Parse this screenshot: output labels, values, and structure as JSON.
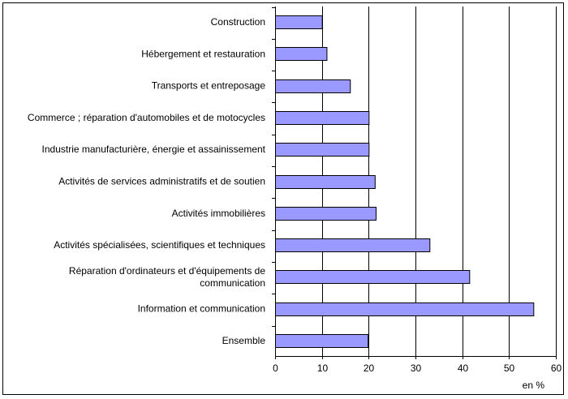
{
  "chart_data": {
    "type": "bar",
    "orientation": "horizontal",
    "categories": [
      [
        "Construction"
      ],
      [
        "Hébergement et restauration"
      ],
      [
        "Transports et entreposage"
      ],
      [
        "Commerce ; réparation d'automobiles et de motocycles"
      ],
      [
        "Industrie manufacturière, énergie et assainissement"
      ],
      [
        "Activités de services administratifs et de soutien"
      ],
      [
        "Activités immobilières"
      ],
      [
        "Activités spécialisées, scientifiques et techniques"
      ],
      [
        "Réparation d'ordinateurs et d'équipements de",
        "communication"
      ],
      [
        "Information et communication"
      ],
      [
        "Ensemble"
      ]
    ],
    "values": [
      10,
      11,
      16,
      20,
      20,
      21.3,
      21.5,
      33,
      41.5,
      55.2,
      19.8
    ],
    "xlim": [
      0,
      60
    ],
    "xticks": [
      "0",
      "10",
      "20",
      "30",
      "40",
      "50",
      "60"
    ],
    "unit_label": "en %",
    "grid": "vertical",
    "bar_color": "#9999ff"
  }
}
